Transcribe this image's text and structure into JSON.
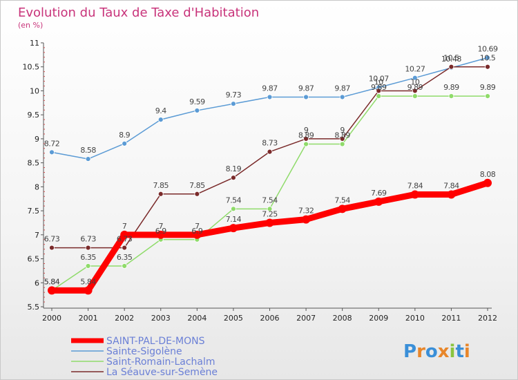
{
  "chart_data": {
    "type": "line",
    "title": "Evolution du Taux de Taxe d'Habitation",
    "subtitle": "(en %)",
    "x": [
      "2000",
      "2001",
      "2002",
      "2003",
      "2004",
      "2005",
      "2006",
      "2007",
      "2008",
      "2009",
      "2010",
      "2011",
      "2012"
    ],
    "ylim": [
      5.5,
      11
    ],
    "yticks": [
      "5.5",
      "6",
      "6.5",
      "7",
      "7.5",
      "8",
      "8.5",
      "9",
      "9.5",
      "10",
      "10.5",
      "11"
    ],
    "grid": false,
    "legend_position": "bottom-left",
    "series": [
      {
        "name": "SAINT-PAL-DE-MONS",
        "color": "#ff0000",
        "values": [
          5.84,
          5.84,
          7,
          7,
          7,
          7.14,
          7.25,
          7.32,
          7.54,
          7.69,
          7.84,
          7.84,
          8.08
        ],
        "labels": [
          "5.84",
          "5.84",
          "7",
          "7",
          "7",
          "7.14",
          "7.25",
          "7.32",
          "7.54",
          "7.69",
          "7.84",
          "7.84",
          "8.08"
        ]
      },
      {
        "name": "Sainte-Sigolène",
        "color": "#5b9bd5",
        "values": [
          8.72,
          8.58,
          8.9,
          9.4,
          9.59,
          9.73,
          9.87,
          9.87,
          9.87,
          10.07,
          10.27,
          10.48,
          10.69
        ],
        "labels": [
          "8.72",
          "8.58",
          "8.9",
          "9.4",
          "9.59",
          "9.73",
          "9.87",
          "9.87",
          "9.87",
          "10.07",
          "10.27",
          "10.48",
          "10.69"
        ]
      },
      {
        "name": "Saint-Romain-Lachalm",
        "color": "#8fdb6a",
        "values": [
          5.84,
          6.35,
          6.35,
          6.9,
          6.9,
          7.54,
          7.54,
          8.89,
          8.89,
          9.89,
          9.89,
          9.89,
          9.89
        ],
        "labels": [
          "5.84",
          "6.35",
          "6.35",
          "6.9",
          "6.9",
          "7.54",
          "7.54",
          "8.89",
          "8.89",
          "9.89",
          "9.89",
          "9.89",
          "9.89"
        ]
      },
      {
        "name": "La Séauve-sur-Semène",
        "color": "#7a2a2a",
        "values": [
          6.73,
          6.73,
          6.73,
          7.85,
          7.85,
          8.19,
          8.73,
          9,
          9,
          10,
          10,
          10.5,
          10.5
        ],
        "labels": [
          "6.73",
          "6.73",
          "6.73",
          "7.85",
          "7.85",
          "8.19",
          "8.73",
          "9",
          "9",
          "10",
          "10",
          "10.5",
          "10.5"
        ]
      }
    ]
  },
  "legend": {
    "items": [
      "SAINT-PAL-DE-MONS",
      "Sainte-Sigolène",
      "Saint-Romain-Lachalm",
      "La Séauve-sur-Semène"
    ]
  },
  "logo": {
    "text": "Proxiti"
  },
  "colors": {
    "title": "#c8337a",
    "legend_text": "#6a7fd6"
  }
}
